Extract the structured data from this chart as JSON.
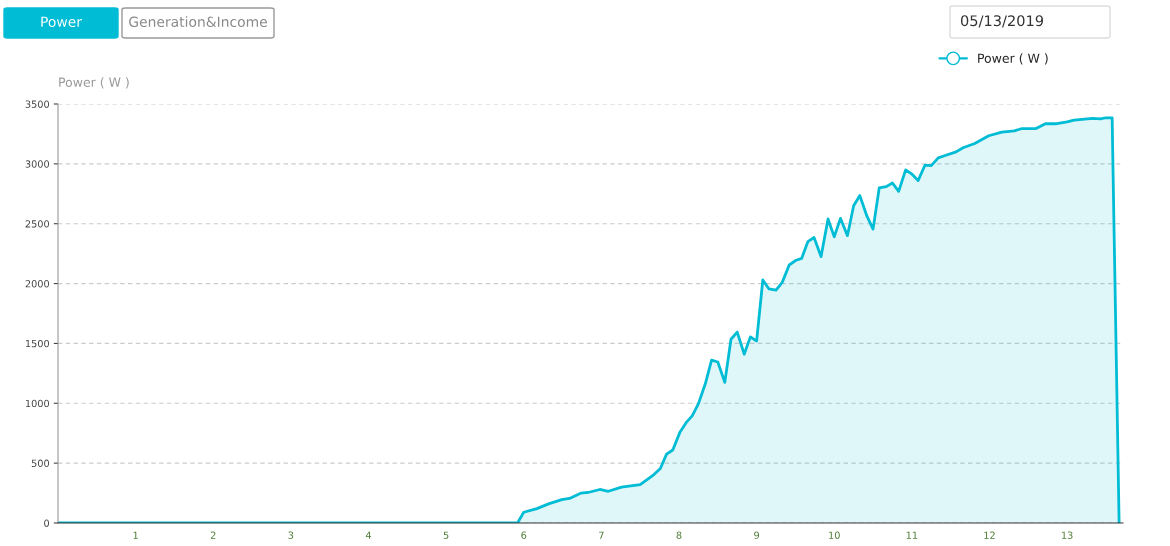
{
  "chart_data": {
    "type": "area",
    "ylabel": "Power ( W )",
    "annotations": [
      "Power",
      "Generation&Income",
      "05/13/2019"
    ],
    "xlim": [
      0,
      13.72
    ],
    "xticks": [
      1,
      2,
      3,
      4,
      5,
      6,
      7,
      8,
      9,
      10,
      11,
      12,
      13
    ],
    "ylim": [
      0,
      3500
    ],
    "yticks": [
      0,
      500,
      1000,
      1500,
      2000,
      2500,
      3000,
      3500
    ],
    "grid": "y",
    "legend": "top right",
    "series": [
      {
        "name": "Power ( W )",
        "color": "#00bcd4",
        "x": [
          0,
          5.92,
          6.0,
          6.17,
          6.32,
          6.49,
          6.59,
          6.74,
          6.83,
          6.98,
          7.09,
          7.26,
          7.5,
          7.66,
          7.76,
          7.84,
          7.92,
          8.01,
          8.1,
          8.17,
          8.25,
          8.34,
          8.42,
          8.5,
          8.59,
          8.67,
          8.75,
          8.84,
          8.92,
          9.0,
          9.08,
          9.16,
          9.25,
          9.33,
          9.42,
          9.51,
          9.58,
          9.66,
          9.74,
          9.83,
          9.92,
          10.0,
          10.08,
          10.17,
          10.25,
          10.33,
          10.42,
          10.5,
          10.58,
          10.67,
          10.75,
          10.83,
          10.92,
          11.0,
          11.08,
          11.17,
          11.25,
          11.34,
          11.43,
          11.57,
          11.66,
          11.81,
          11.99,
          12.16,
          12.32,
          12.42,
          12.6,
          12.72,
          12.85,
          13.0,
          13.09,
          13.33,
          13.43,
          13.5,
          13.58,
          13.67
        ],
        "values": [
          0,
          0,
          90,
          120,
          160,
          195,
          205,
          250,
          255,
          280,
          265,
          300,
          320,
          395,
          455,
          575,
          610,
          755,
          845,
          895,
          995,
          1165,
          1360,
          1345,
          1175,
          1535,
          1595,
          1410,
          1555,
          1520,
          2030,
          1955,
          1945,
          2010,
          2155,
          2195,
          2210,
          2350,
          2385,
          2225,
          2540,
          2390,
          2545,
          2400,
          2650,
          2735,
          2565,
          2455,
          2800,
          2810,
          2840,
          2770,
          2950,
          2915,
          2860,
          2990,
          2985,
          3050,
          3070,
          3100,
          3135,
          3170,
          3235,
          3265,
          3275,
          3295,
          3295,
          3335,
          3335,
          3350,
          3365,
          3380,
          3375,
          3385,
          3385,
          0
        ]
      }
    ]
  }
}
